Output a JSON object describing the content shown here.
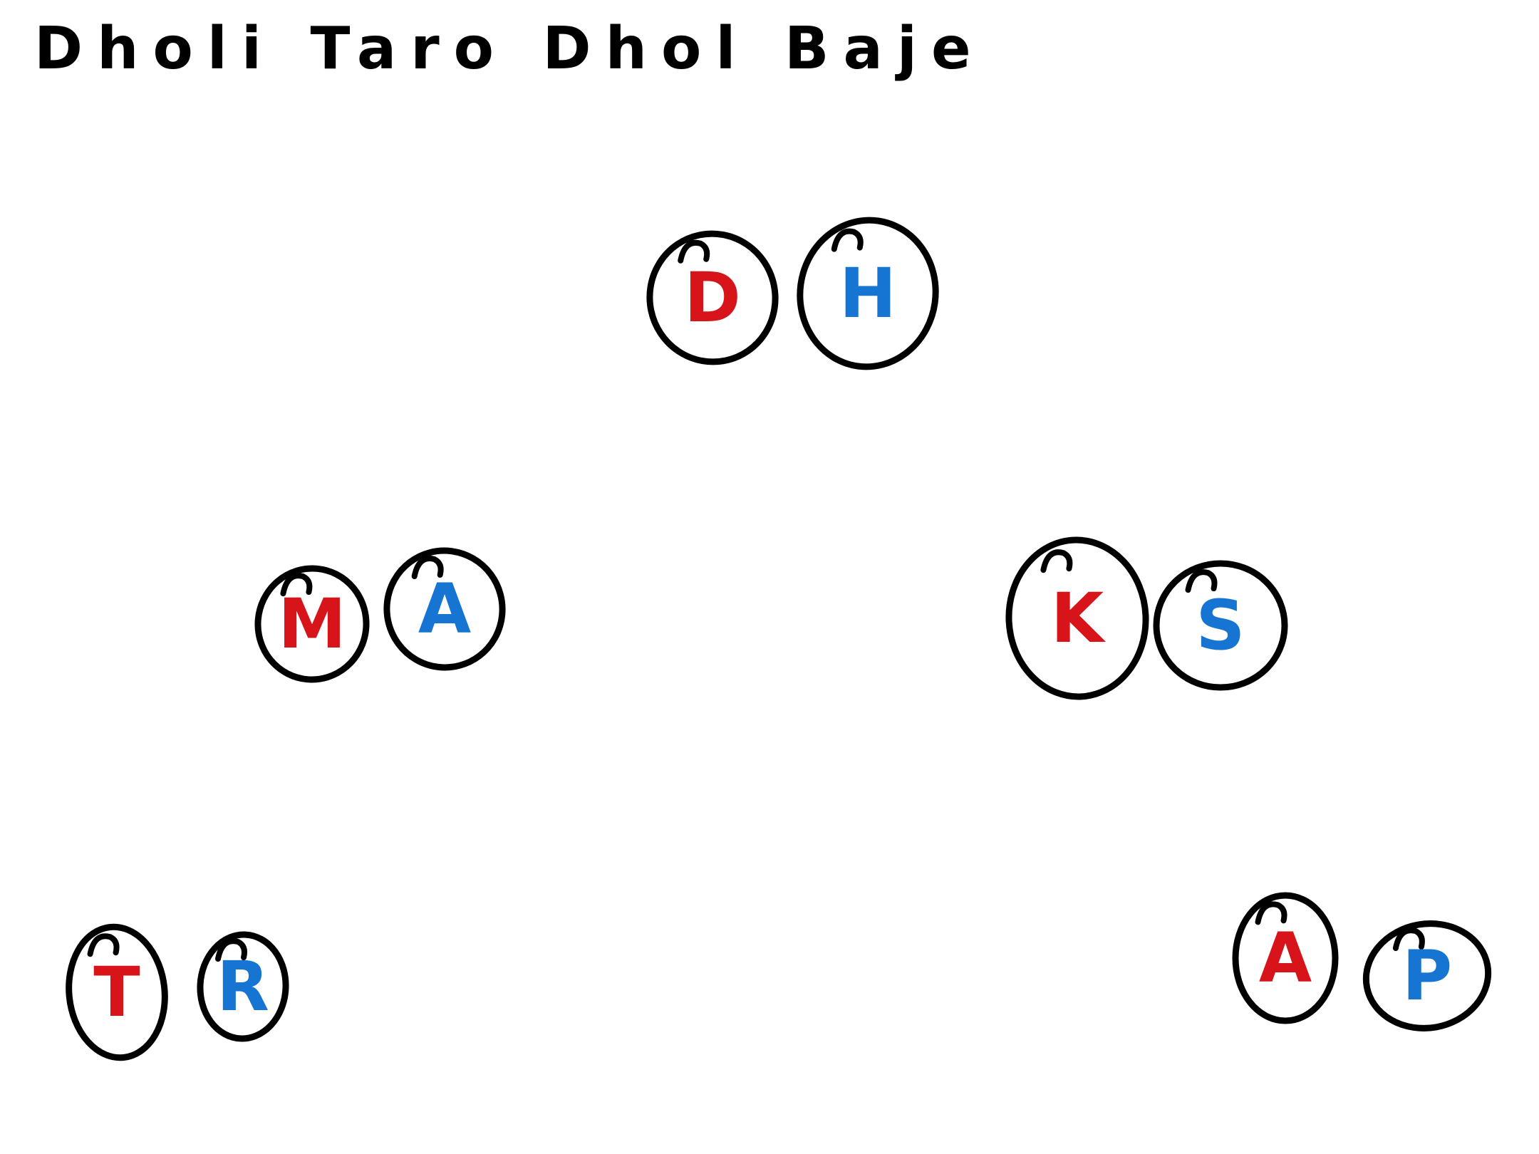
{
  "title": "Dholi Taro Dhol Baje",
  "colors": {
    "outline": "#000000",
    "red": "#d7141a",
    "blue": "#1674d3"
  },
  "pairs": [
    {
      "id": "center-top",
      "members": [
        {
          "letter": "D",
          "color": "red"
        },
        {
          "letter": "H",
          "color": "blue"
        }
      ]
    },
    {
      "id": "left-middle",
      "members": [
        {
          "letter": "M",
          "color": "red"
        },
        {
          "letter": "A",
          "color": "blue"
        }
      ]
    },
    {
      "id": "right-middle",
      "members": [
        {
          "letter": "K",
          "color": "red"
        },
        {
          "letter": "S",
          "color": "blue"
        }
      ]
    },
    {
      "id": "left-bottom",
      "members": [
        {
          "letter": "T",
          "color": "red"
        },
        {
          "letter": "R",
          "color": "blue"
        }
      ]
    },
    {
      "id": "right-bottom",
      "members": [
        {
          "letter": "A",
          "color": "red"
        },
        {
          "letter": "P",
          "color": "blue"
        }
      ]
    }
  ]
}
